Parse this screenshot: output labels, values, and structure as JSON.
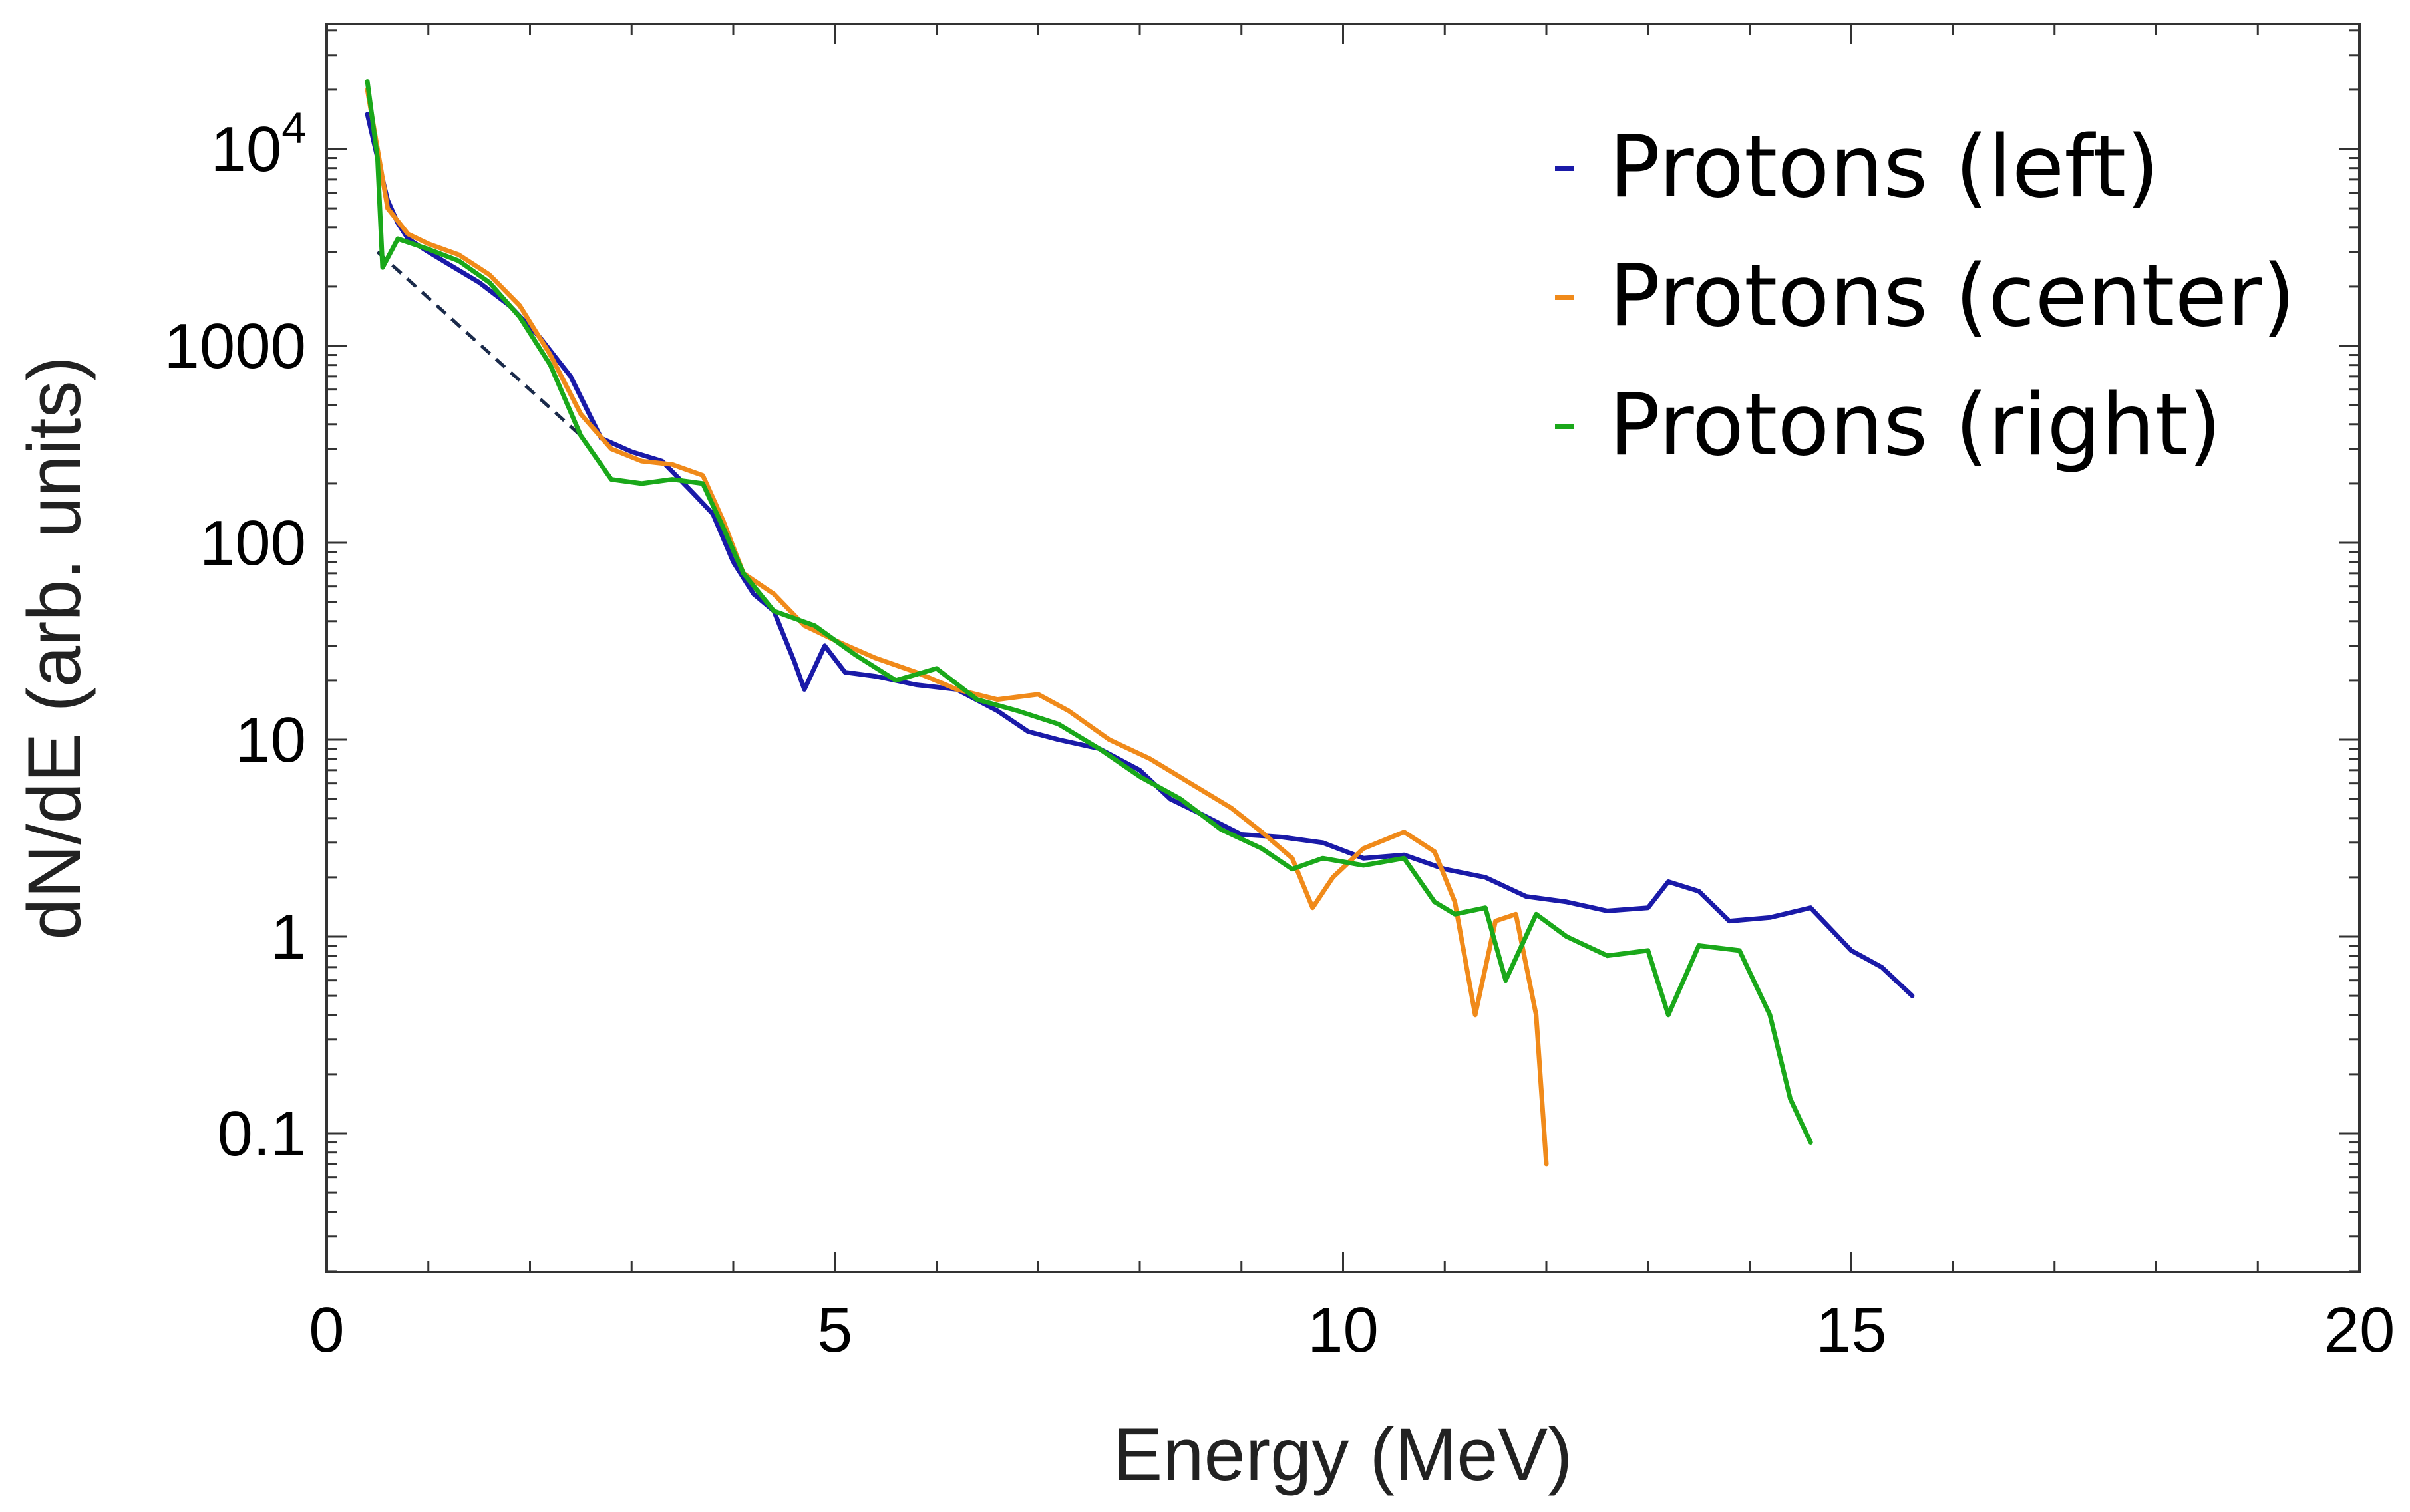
{
  "chart_data": {
    "type": "line",
    "title": "",
    "xlabel": "Energy (MeV)",
    "ylabel": "dN/dE (arb. units)",
    "xlim": [
      0,
      20
    ],
    "ylim": [
      0.02,
      40000
    ],
    "yscale": "log",
    "grid": false,
    "legend_position": "top-right",
    "x_ticks": [
      {
        "value": 0,
        "label": "0"
      },
      {
        "value": 5,
        "label": "5"
      },
      {
        "value": 10,
        "label": "10"
      },
      {
        "value": 15,
        "label": "15"
      },
      {
        "value": 20,
        "label": "20"
      }
    ],
    "y_ticks": [
      {
        "value": 0.1,
        "label": "0.1"
      },
      {
        "value": 1,
        "label": "1"
      },
      {
        "value": 10,
        "label": "10"
      },
      {
        "value": 100,
        "label": "100"
      },
      {
        "value": 1000,
        "label": "1000"
      }
    ],
    "y_tick_power": {
      "value": 10000,
      "base": "10",
      "exponent": "4"
    },
    "series": [
      {
        "name": "Protons (left)",
        "color": "#1a1aa8",
        "points": [
          [
            0.4,
            15000
          ],
          [
            0.5,
            9000
          ],
          [
            0.6,
            5500
          ],
          [
            0.7,
            4200
          ],
          [
            0.8,
            3500
          ],
          [
            1.0,
            3000
          ],
          [
            1.2,
            2600
          ],
          [
            1.5,
            2100
          ],
          [
            1.8,
            1600
          ],
          [
            2.1,
            1100
          ],
          [
            2.4,
            700
          ],
          [
            2.7,
            340
          ],
          [
            3.0,
            290
          ],
          [
            3.3,
            260
          ],
          [
            3.6,
            180
          ],
          [
            3.8,
            140
          ],
          [
            4.0,
            80
          ],
          [
            4.2,
            55
          ],
          [
            4.4,
            45
          ],
          [
            4.6,
            25
          ],
          [
            4.7,
            18
          ],
          [
            4.9,
            30
          ],
          [
            5.1,
            22
          ],
          [
            5.4,
            21
          ],
          [
            5.8,
            19
          ],
          [
            6.2,
            18
          ],
          [
            6.6,
            14
          ],
          [
            6.9,
            11
          ],
          [
            7.2,
            10
          ],
          [
            7.6,
            9
          ],
          [
            8.0,
            7
          ],
          [
            8.3,
            5
          ],
          [
            8.6,
            4.2
          ],
          [
            9.0,
            3.3
          ],
          [
            9.4,
            3.2
          ],
          [
            9.8,
            3.0
          ],
          [
            10.2,
            2.5
          ],
          [
            10.6,
            2.6
          ],
          [
            11.0,
            2.2
          ],
          [
            11.4,
            2.0
          ],
          [
            11.8,
            1.6
          ],
          [
            12.2,
            1.5
          ],
          [
            12.6,
            1.35
          ],
          [
            13.0,
            1.4
          ],
          [
            13.2,
            1.9
          ],
          [
            13.5,
            1.7
          ],
          [
            13.8,
            1.2
          ],
          [
            14.2,
            1.25
          ],
          [
            14.6,
            1.4
          ],
          [
            15.0,
            0.85
          ],
          [
            15.3,
            0.7
          ],
          [
            15.6,
            0.5
          ]
        ]
      },
      {
        "name": "Protons (center)",
        "color": "#f08a1a",
        "points": [
          [
            0.4,
            20000
          ],
          [
            0.5,
            10000
          ],
          [
            0.6,
            5000
          ],
          [
            0.8,
            3700
          ],
          [
            1.0,
            3300
          ],
          [
            1.3,
            2900
          ],
          [
            1.6,
            2300
          ],
          [
            1.9,
            1600
          ],
          [
            2.2,
            900
          ],
          [
            2.5,
            450
          ],
          [
            2.8,
            300
          ],
          [
            3.1,
            260
          ],
          [
            3.4,
            250
          ],
          [
            3.7,
            220
          ],
          [
            3.9,
            130
          ],
          [
            4.1,
            70
          ],
          [
            4.4,
            55
          ],
          [
            4.7,
            38
          ],
          [
            5.0,
            32
          ],
          [
            5.4,
            26
          ],
          [
            5.8,
            22
          ],
          [
            6.2,
            18
          ],
          [
            6.6,
            16
          ],
          [
            7.0,
            17
          ],
          [
            7.3,
            14
          ],
          [
            7.7,
            10
          ],
          [
            8.1,
            8
          ],
          [
            8.5,
            6
          ],
          [
            8.9,
            4.5
          ],
          [
            9.2,
            3.4
          ],
          [
            9.5,
            2.5
          ],
          [
            9.7,
            1.4
          ],
          [
            9.9,
            2.0
          ],
          [
            10.2,
            2.8
          ],
          [
            10.6,
            3.4
          ],
          [
            10.9,
            2.7
          ],
          [
            11.1,
            1.5
          ],
          [
            11.3,
            0.4
          ],
          [
            11.5,
            1.2
          ],
          [
            11.7,
            1.3
          ],
          [
            11.9,
            0.4
          ],
          [
            12.0,
            0.07
          ]
        ]
      },
      {
        "name": "Protons (right)",
        "color": "#1aa81a",
        "points": [
          [
            0.4,
            22000
          ],
          [
            0.5,
            9000
          ],
          [
            0.55,
            2500
          ],
          [
            0.7,
            3500
          ],
          [
            1.0,
            3100
          ],
          [
            1.3,
            2700
          ],
          [
            1.6,
            2100
          ],
          [
            1.9,
            1400
          ],
          [
            2.2,
            800
          ],
          [
            2.5,
            350
          ],
          [
            2.8,
            210
          ],
          [
            3.1,
            200
          ],
          [
            3.4,
            210
          ],
          [
            3.7,
            200
          ],
          [
            3.9,
            120
          ],
          [
            4.1,
            70
          ],
          [
            4.4,
            45
          ],
          [
            4.8,
            38
          ],
          [
            5.2,
            27
          ],
          [
            5.6,
            20
          ],
          [
            6.0,
            23
          ],
          [
            6.4,
            16
          ],
          [
            6.8,
            14
          ],
          [
            7.2,
            12
          ],
          [
            7.6,
            9
          ],
          [
            8.0,
            6.5
          ],
          [
            8.4,
            5.0
          ],
          [
            8.8,
            3.5
          ],
          [
            9.2,
            2.8
          ],
          [
            9.5,
            2.2
          ],
          [
            9.8,
            2.5
          ],
          [
            10.2,
            2.3
          ],
          [
            10.6,
            2.5
          ],
          [
            10.9,
            1.5
          ],
          [
            11.1,
            1.3
          ],
          [
            11.4,
            1.4
          ],
          [
            11.6,
            0.6
          ],
          [
            11.9,
            1.3
          ],
          [
            12.2,
            1.0
          ],
          [
            12.6,
            0.8
          ],
          [
            13.0,
            0.85
          ],
          [
            13.2,
            0.4
          ],
          [
            13.5,
            0.9
          ],
          [
            13.9,
            0.85
          ],
          [
            14.2,
            0.4
          ],
          [
            14.4,
            0.15
          ],
          [
            14.6,
            0.09
          ]
        ]
      }
    ],
    "fit_line": {
      "color": "#1a2a4a",
      "style": "dashed",
      "points": [
        [
          0.5,
          3000
        ],
        [
          2.5,
          350
        ]
      ]
    }
  }
}
